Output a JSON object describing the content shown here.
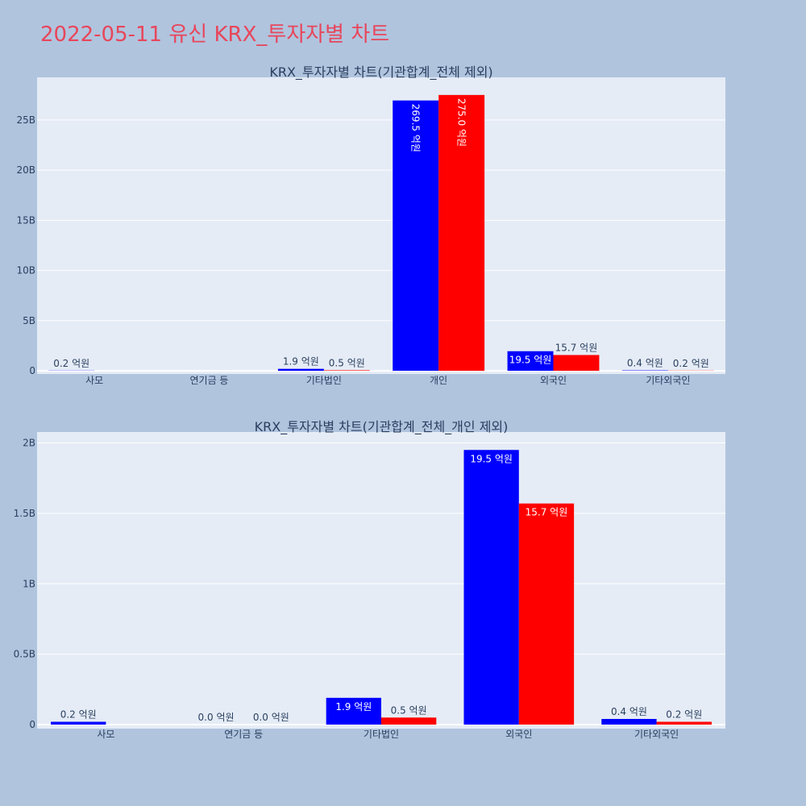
{
  "page_title": "2022-05-11 유신 KRX_투자자별 차트",
  "colors": {
    "series_a": "#0000ff",
    "series_b": "#ff0000",
    "background": "#b0c4de",
    "plot_bg": "#e5ecf6",
    "title": "#e8465b"
  },
  "chart_data": [
    {
      "type": "bar",
      "title": "KRX_투자자별 차트(기관합계_전체 제외)",
      "categories": [
        "사모",
        "연기금 등",
        "기타법인",
        "개인",
        "외국인",
        "기타외국인"
      ],
      "y_tick_labels": [
        "0",
        "5B",
        "10B",
        "15B",
        "20B",
        "25B"
      ],
      "y_tick_values": [
        0,
        5000000000,
        10000000000,
        15000000000,
        20000000000,
        25000000000
      ],
      "ylim": [
        0,
        28000000000
      ],
      "grid": true,
      "series": [
        {
          "values": [
            20000000,
            null,
            190000000,
            26950000000,
            1950000000,
            40000000
          ],
          "labels": [
            "0.2 억원",
            "",
            "1.9 억원",
            "269.5 억원",
            "19.5 억원",
            "0.4 억원"
          ]
        },
        {
          "values": [
            null,
            null,
            50000000,
            27500000000,
            1570000000,
            20000000
          ],
          "labels": [
            "",
            "",
            "0.5 억원",
            "275.0 억원",
            "15.7 억원",
            "0.2 억원"
          ]
        }
      ]
    },
    {
      "type": "bar",
      "title": "KRX_투자자별 차트(기관합계_전체_개인 제외)",
      "categories": [
        "사모",
        "연기금 등",
        "기타법인",
        "외국인",
        "기타외국인"
      ],
      "y_tick_labels": [
        "0",
        "0.5B",
        "1B",
        "1.5B",
        "2B"
      ],
      "y_tick_values": [
        0,
        500000000,
        1000000000,
        1500000000,
        2000000000
      ],
      "ylim": [
        0,
        2070000000
      ],
      "grid": true,
      "series": [
        {
          "values": [
            20000000,
            0,
            190000000,
            1950000000,
            40000000
          ],
          "labels": [
            "0.2 억원",
            "0.0 억원",
            "1.9 억원",
            "19.5 억원",
            "0.4 억원"
          ]
        },
        {
          "values": [
            null,
            0,
            50000000,
            1570000000,
            20000000
          ],
          "labels": [
            "",
            "0.0 억원",
            "0.5 억원",
            "15.7 억원",
            "0.2 억원"
          ]
        }
      ]
    }
  ]
}
